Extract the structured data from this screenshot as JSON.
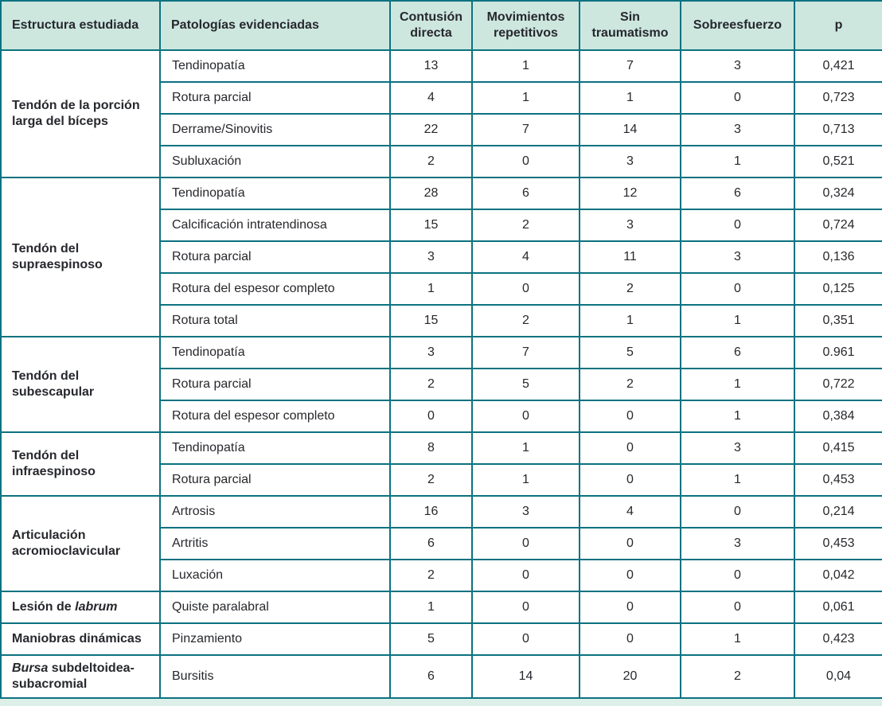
{
  "colors": {
    "border": "#0b7280",
    "header_bg": "#cde7df",
    "text": "#26282c",
    "strip": "#dcefe8",
    "cell_bg": "#ffffff"
  },
  "table": {
    "columns": [
      "Estructura estudiada",
      "Patologías evidenciadas",
      "Contusión directa",
      "Movimientos repetitivos",
      "Sin traumatismo",
      "Sobreesfuerzo",
      "p"
    ],
    "groups": [
      {
        "structure": [
          {
            "text": "Tendón de la porción larga del bíceps",
            "italic": false
          }
        ],
        "tall": false,
        "rows": [
          {
            "pathology": "Tendinopatía",
            "values": [
              "13",
              "1",
              "7",
              "3",
              "0,421"
            ]
          },
          {
            "pathology": "Rotura parcial",
            "values": [
              "4",
              "1",
              "1",
              "0",
              "0,723"
            ]
          },
          {
            "pathology": "Derrame/Sinovitis",
            "values": [
              "22",
              "7",
              "14",
              "3",
              "0,713"
            ]
          },
          {
            "pathology": "Subluxación",
            "values": [
              "2",
              "0",
              "3",
              "1",
              "0,521"
            ]
          }
        ]
      },
      {
        "structure": [
          {
            "text": "Tendón del supraespinoso",
            "italic": false
          }
        ],
        "tall": false,
        "rows": [
          {
            "pathology": "Tendinopatía",
            "values": [
              "28",
              "6",
              "12",
              "6",
              "0,324"
            ]
          },
          {
            "pathology": "Calcificación intratendinosa",
            "values": [
              "15",
              "2",
              "3",
              "0",
              "0,724"
            ]
          },
          {
            "pathology": "Rotura parcial",
            "values": [
              "3",
              "4",
              "11",
              "3",
              "0,136"
            ]
          },
          {
            "pathology": "Rotura del espesor completo",
            "values": [
              "1",
              "0",
              "2",
              "0",
              "0,125"
            ]
          },
          {
            "pathology": "Rotura total",
            "values": [
              "15",
              "2",
              "1",
              "1",
              "0,351"
            ]
          }
        ]
      },
      {
        "structure": [
          {
            "text": "Tendón del subescapular",
            "italic": false
          }
        ],
        "tall": false,
        "rows": [
          {
            "pathology": "Tendinopatía",
            "values": [
              "3",
              "7",
              "5",
              "6",
              "0.961"
            ]
          },
          {
            "pathology": "Rotura parcial",
            "values": [
              "2",
              "5",
              "2",
              "1",
              "0,722"
            ]
          },
          {
            "pathology": "Rotura del espesor completo",
            "values": [
              "0",
              "0",
              "0",
              "1",
              "0,384"
            ]
          }
        ]
      },
      {
        "structure": [
          {
            "text": "Tendón del infraespinoso",
            "italic": false
          }
        ],
        "tall": false,
        "rows": [
          {
            "pathology": "Tendinopatía",
            "values": [
              "8",
              "1",
              "0",
              "3",
              "0,415"
            ]
          },
          {
            "pathology": "Rotura parcial",
            "values": [
              "2",
              "1",
              "0",
              "1",
              "0,453"
            ]
          }
        ]
      },
      {
        "structure": [
          {
            "text": "Articulación acromioclavicular",
            "italic": false
          }
        ],
        "tall": false,
        "rows": [
          {
            "pathology": "Artrosis",
            "values": [
              "16",
              "3",
              "4",
              "0",
              "0,214"
            ]
          },
          {
            "pathology": "Artritis",
            "values": [
              "6",
              "0",
              "0",
              "3",
              "0,453"
            ]
          },
          {
            "pathology": "Luxación",
            "values": [
              "2",
              "0",
              "0",
              "0",
              "0,042"
            ]
          }
        ]
      },
      {
        "structure": [
          {
            "text": "Lesión de ",
            "italic": false
          },
          {
            "text": "labrum",
            "italic": true
          }
        ],
        "tall": false,
        "rows": [
          {
            "pathology": "Quiste paralabral",
            "values": [
              "1",
              "0",
              "0",
              "0",
              "0,061"
            ]
          }
        ]
      },
      {
        "structure": [
          {
            "text": "Maniobras dinámicas",
            "italic": false
          }
        ],
        "tall": false,
        "rows": [
          {
            "pathology": "Pinzamiento",
            "values": [
              "5",
              "0",
              "0",
              "1",
              "0,423"
            ]
          }
        ]
      },
      {
        "structure": [
          {
            "text": "Bursa",
            "italic": true
          },
          {
            "text": " subdeltoidea-subacromial",
            "italic": false
          }
        ],
        "tall": true,
        "rows": [
          {
            "pathology": "Bursitis",
            "values": [
              "6",
              "14",
              "20",
              "2",
              "0,04"
            ]
          }
        ]
      }
    ]
  }
}
